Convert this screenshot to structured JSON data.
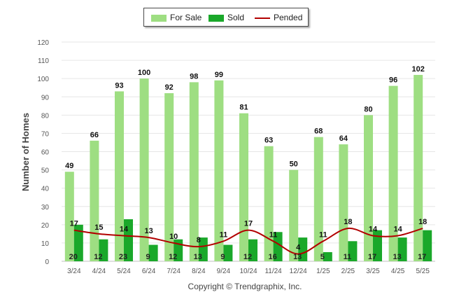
{
  "chart_data": {
    "type": "bar",
    "title": "",
    "xlabel": "",
    "ylabel": "Number of Homes",
    "ylim": [
      0,
      120
    ],
    "yticks": [
      0,
      10,
      20,
      30,
      40,
      50,
      60,
      70,
      80,
      90,
      100,
      110,
      120
    ],
    "grid": true,
    "legend_position": "top-center",
    "categories": [
      "3/24",
      "4/24",
      "5/24",
      "6/24",
      "7/24",
      "8/24",
      "9/24",
      "10/24",
      "11/24",
      "12/24",
      "1/25",
      "2/25",
      "3/25",
      "4/25",
      "5/25"
    ],
    "series": [
      {
        "name": "For Sale",
        "type": "bar",
        "color": "#9ede82",
        "values": [
          49,
          66,
          93,
          100,
          92,
          98,
          99,
          81,
          63,
          50,
          68,
          64,
          80,
          96,
          102
        ]
      },
      {
        "name": "Sold",
        "type": "bar",
        "color": "#1aa82a",
        "values": [
          20,
          12,
          23,
          9,
          12,
          13,
          9,
          12,
          16,
          13,
          5,
          11,
          17,
          13,
          17
        ]
      },
      {
        "name": "Pended",
        "type": "line",
        "color": "#b20000",
        "values": [
          17,
          15,
          14,
          13,
          10,
          8,
          11,
          17,
          11,
          4,
          11,
          18,
          14,
          14,
          18
        ]
      }
    ],
    "credit": "Copyright © Trendgraphix, Inc."
  }
}
